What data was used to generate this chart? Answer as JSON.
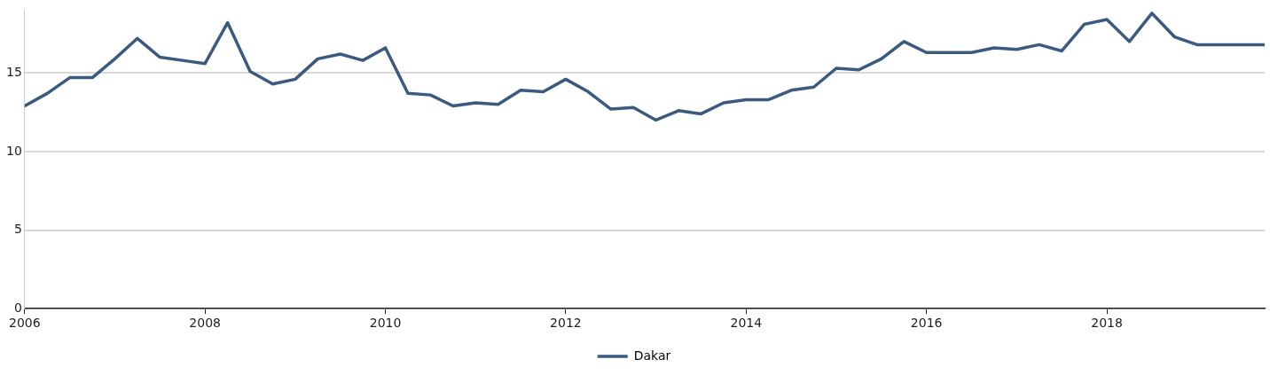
{
  "chart_data": {
    "type": "line",
    "x": [
      2006,
      2006.25,
      2006.5,
      2006.75,
      2007,
      2007.25,
      2007.5,
      2007.75,
      2008,
      2008.25,
      2008.5,
      2008.75,
      2009,
      2009.25,
      2009.5,
      2009.75,
      2010,
      2010.25,
      2010.5,
      2010.75,
      2011,
      2011.25,
      2011.5,
      2011.75,
      2012,
      2012.25,
      2012.5,
      2012.75,
      2013,
      2013.25,
      2013.5,
      2013.75,
      2014,
      2014.25,
      2014.5,
      2014.75,
      2015,
      2015.25,
      2015.5,
      2015.75,
      2016,
      2016.25,
      2016.5,
      2016.75,
      2017,
      2017.25,
      2017.5,
      2017.75,
      2018,
      2018.25,
      2018.5,
      2018.75,
      2019,
      2019.25,
      2019.5,
      2019.75
    ],
    "series": [
      {
        "name": "Dakar",
        "color": "#3a5a80",
        "values": [
          12.9,
          13.7,
          14.7,
          14.7,
          15.9,
          17.2,
          16.0,
          15.8,
          15.6,
          18.2,
          15.1,
          14.3,
          14.6,
          15.9,
          16.2,
          15.8,
          16.6,
          13.7,
          13.6,
          12.9,
          13.1,
          13.0,
          13.9,
          13.8,
          14.6,
          13.8,
          12.7,
          12.8,
          12.0,
          12.6,
          12.4,
          13.1,
          13.3,
          13.3,
          13.9,
          14.1,
          15.3,
          15.2,
          15.9,
          17.0,
          16.3,
          16.3,
          16.3,
          16.6,
          16.5,
          16.8,
          16.4,
          18.1,
          18.4,
          17.0,
          18.8,
          17.3,
          16.8,
          16.8,
          16.8,
          16.8
        ]
      }
    ],
    "xlim": [
      2006,
      2019.75
    ],
    "xticks": [
      2006,
      2008,
      2010,
      2012,
      2014,
      2016,
      2018
    ],
    "ylim": [
      0,
      19
    ],
    "yticks": [
      0,
      5,
      10,
      15
    ],
    "grid": "y",
    "legend": "bottom",
    "marker": "none",
    "line_style": "solid"
  }
}
